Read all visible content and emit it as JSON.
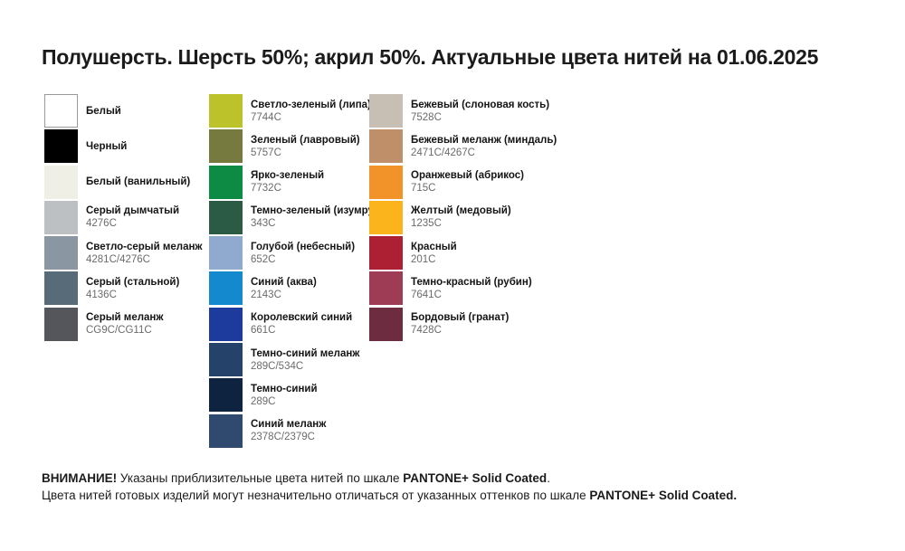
{
  "title": "Полушерсть. Шерсть 50%; акрил 50%. Актуальные цвета нитей на 01.06.2025",
  "columns": [
    {
      "name": "grays",
      "items": [
        {
          "name": "Белый",
          "code": "",
          "color": "#FFFFFF",
          "border": "#9A9A9A"
        },
        {
          "name": "Черный",
          "code": "",
          "color": "#000000"
        },
        {
          "name": "Белый (ванильный)",
          "code": "",
          "color": "#EFEFE5"
        },
        {
          "name": "Серый дымчатый",
          "code": "4276C",
          "color": "#BDC0C3"
        },
        {
          "name": "Светло-серый меланж",
          "code": "4281C/4276C",
          "color": "#8A97A2"
        },
        {
          "name": "Серый (стальной)",
          "code": "4136C",
          "color": "#586B79"
        },
        {
          "name": "Серый меланж",
          "code": "CG9C/CG11C",
          "color": "#54565B"
        }
      ]
    },
    {
      "name": "greens-blues",
      "items": [
        {
          "name": "Светло-зеленый (липа)",
          "code": "7744C",
          "color": "#BCC22A"
        },
        {
          "name": "Зеленый (лавровый)",
          "code": "5757C",
          "color": "#767A3E"
        },
        {
          "name": "Ярко-зеленый",
          "code": "7732C",
          "color": "#0D8A44"
        },
        {
          "name": "Темно-зеленый (изумруд)",
          "code": "343C",
          "color": "#2B5A45"
        },
        {
          "name": "Голубой (небесный)",
          "code": "652C",
          "color": "#8FA9CF"
        },
        {
          "name": "Синий (аква)",
          "code": "2143C",
          "color": "#1489CE"
        },
        {
          "name": "Королевский синий",
          "code": "661C",
          "color": "#1D3B9C"
        },
        {
          "name": "Темно-синий меланж",
          "code": "289C/534C",
          "color": "#25426B"
        },
        {
          "name": "Темно-синий",
          "code": "289C",
          "color": "#0E2340"
        },
        {
          "name": "Синий меланж",
          "code": "2378C/2379C",
          "color": "#30496F"
        }
      ]
    },
    {
      "name": "warm",
      "items": [
        {
          "name": "Бежевый (слоновая кость)",
          "code": "7528C",
          "color": "#C7BFB4"
        },
        {
          "name": "Бежевый меланж (миндаль)",
          "code": "2471C/4267C",
          "color": "#BF8F6A"
        },
        {
          "name": "Оранжевый (абрикос)",
          "code": "715C",
          "color": "#F2932A"
        },
        {
          "name": "Желтый (медовый)",
          "code": "1235C",
          "color": "#FCB41D"
        },
        {
          "name": "Красный",
          "code": "201C",
          "color": "#AD2033"
        },
        {
          "name": "Темно-красный (рубин)",
          "code": "7641C",
          "color": "#9F3C55"
        },
        {
          "name": "Бордовый (гранат)",
          "code": "7428C",
          "color": "#6D2C3F"
        }
      ]
    }
  ],
  "footer": {
    "lines": [
      {
        "segments": [
          {
            "text": "ВНИМАНИЕ!",
            "bold": true
          },
          {
            "text": " Указаны приблизительные цвета нитей по шкале ",
            "bold": false
          },
          {
            "text": "PANTONE+ Solid Coated",
            "bold": true
          },
          {
            "text": ".",
            "bold": false
          }
        ]
      },
      {
        "segments": [
          {
            "text": "Цвета нитей готовых изделий могут незначительно отличаться от указанных оттенков по шкале ",
            "bold": false
          },
          {
            "text": "PANTONE+ Solid Coated.",
            "bold": true
          }
        ]
      }
    ]
  }
}
